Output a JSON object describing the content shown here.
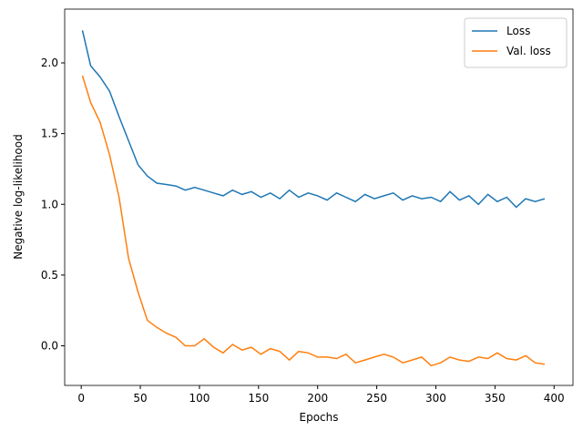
{
  "chart_data": {
    "type": "line",
    "xlabel": "Epochs",
    "ylabel": "Negative log-likelihood",
    "x": [
      1,
      8,
      16,
      24,
      32,
      40,
      48,
      56,
      64,
      72,
      80,
      88,
      96,
      104,
      112,
      120,
      128,
      136,
      144,
      152,
      160,
      168,
      176,
      184,
      192,
      200,
      208,
      216,
      224,
      232,
      240,
      248,
      256,
      264,
      272,
      280,
      288,
      296,
      304,
      312,
      320,
      328,
      336,
      344,
      352,
      360,
      368,
      376,
      384,
      392
    ],
    "series": [
      {
        "name": "Loss",
        "color": "#1f77b4",
        "values": [
          2.23,
          1.98,
          1.9,
          1.8,
          1.62,
          1.45,
          1.28,
          1.2,
          1.15,
          1.14,
          1.13,
          1.1,
          1.12,
          1.1,
          1.08,
          1.06,
          1.1,
          1.07,
          1.09,
          1.05,
          1.08,
          1.04,
          1.1,
          1.05,
          1.08,
          1.06,
          1.03,
          1.08,
          1.05,
          1.02,
          1.07,
          1.04,
          1.06,
          1.08,
          1.03,
          1.06,
          1.04,
          1.05,
          1.02,
          1.09,
          1.03,
          1.06,
          1.0,
          1.07,
          1.02,
          1.05,
          0.98,
          1.04,
          1.02,
          1.04
        ]
      },
      {
        "name": "Val. loss",
        "color": "#ff7f0e",
        "values": [
          1.91,
          1.72,
          1.58,
          1.35,
          1.05,
          0.62,
          0.38,
          0.18,
          0.13,
          0.09,
          0.06,
          0.0,
          0.0,
          0.05,
          -0.01,
          -0.05,
          0.01,
          -0.03,
          -0.01,
          -0.06,
          -0.02,
          -0.04,
          -0.1,
          -0.04,
          -0.05,
          -0.08,
          -0.08,
          -0.09,
          -0.06,
          -0.12,
          -0.1,
          -0.08,
          -0.06,
          -0.08,
          -0.12,
          -0.1,
          -0.08,
          -0.14,
          -0.12,
          -0.08,
          -0.1,
          -0.11,
          -0.08,
          -0.09,
          -0.05,
          -0.09,
          -0.1,
          -0.07,
          -0.12,
          -0.13
        ]
      }
    ],
    "xlim": [
      -14,
      416
    ],
    "ylim": [
      -0.28,
      2.38
    ],
    "xticks": [
      0,
      50,
      100,
      150,
      200,
      250,
      300,
      350,
      400
    ],
    "yticks": [
      {
        "value": 0,
        "label": "0.0"
      },
      0.5,
      {
        "value": 1,
        "label": "1.0"
      },
      1.5,
      {
        "value": 2,
        "label": "2.0"
      }
    ],
    "legend": "upper right",
    "grid": false
  }
}
